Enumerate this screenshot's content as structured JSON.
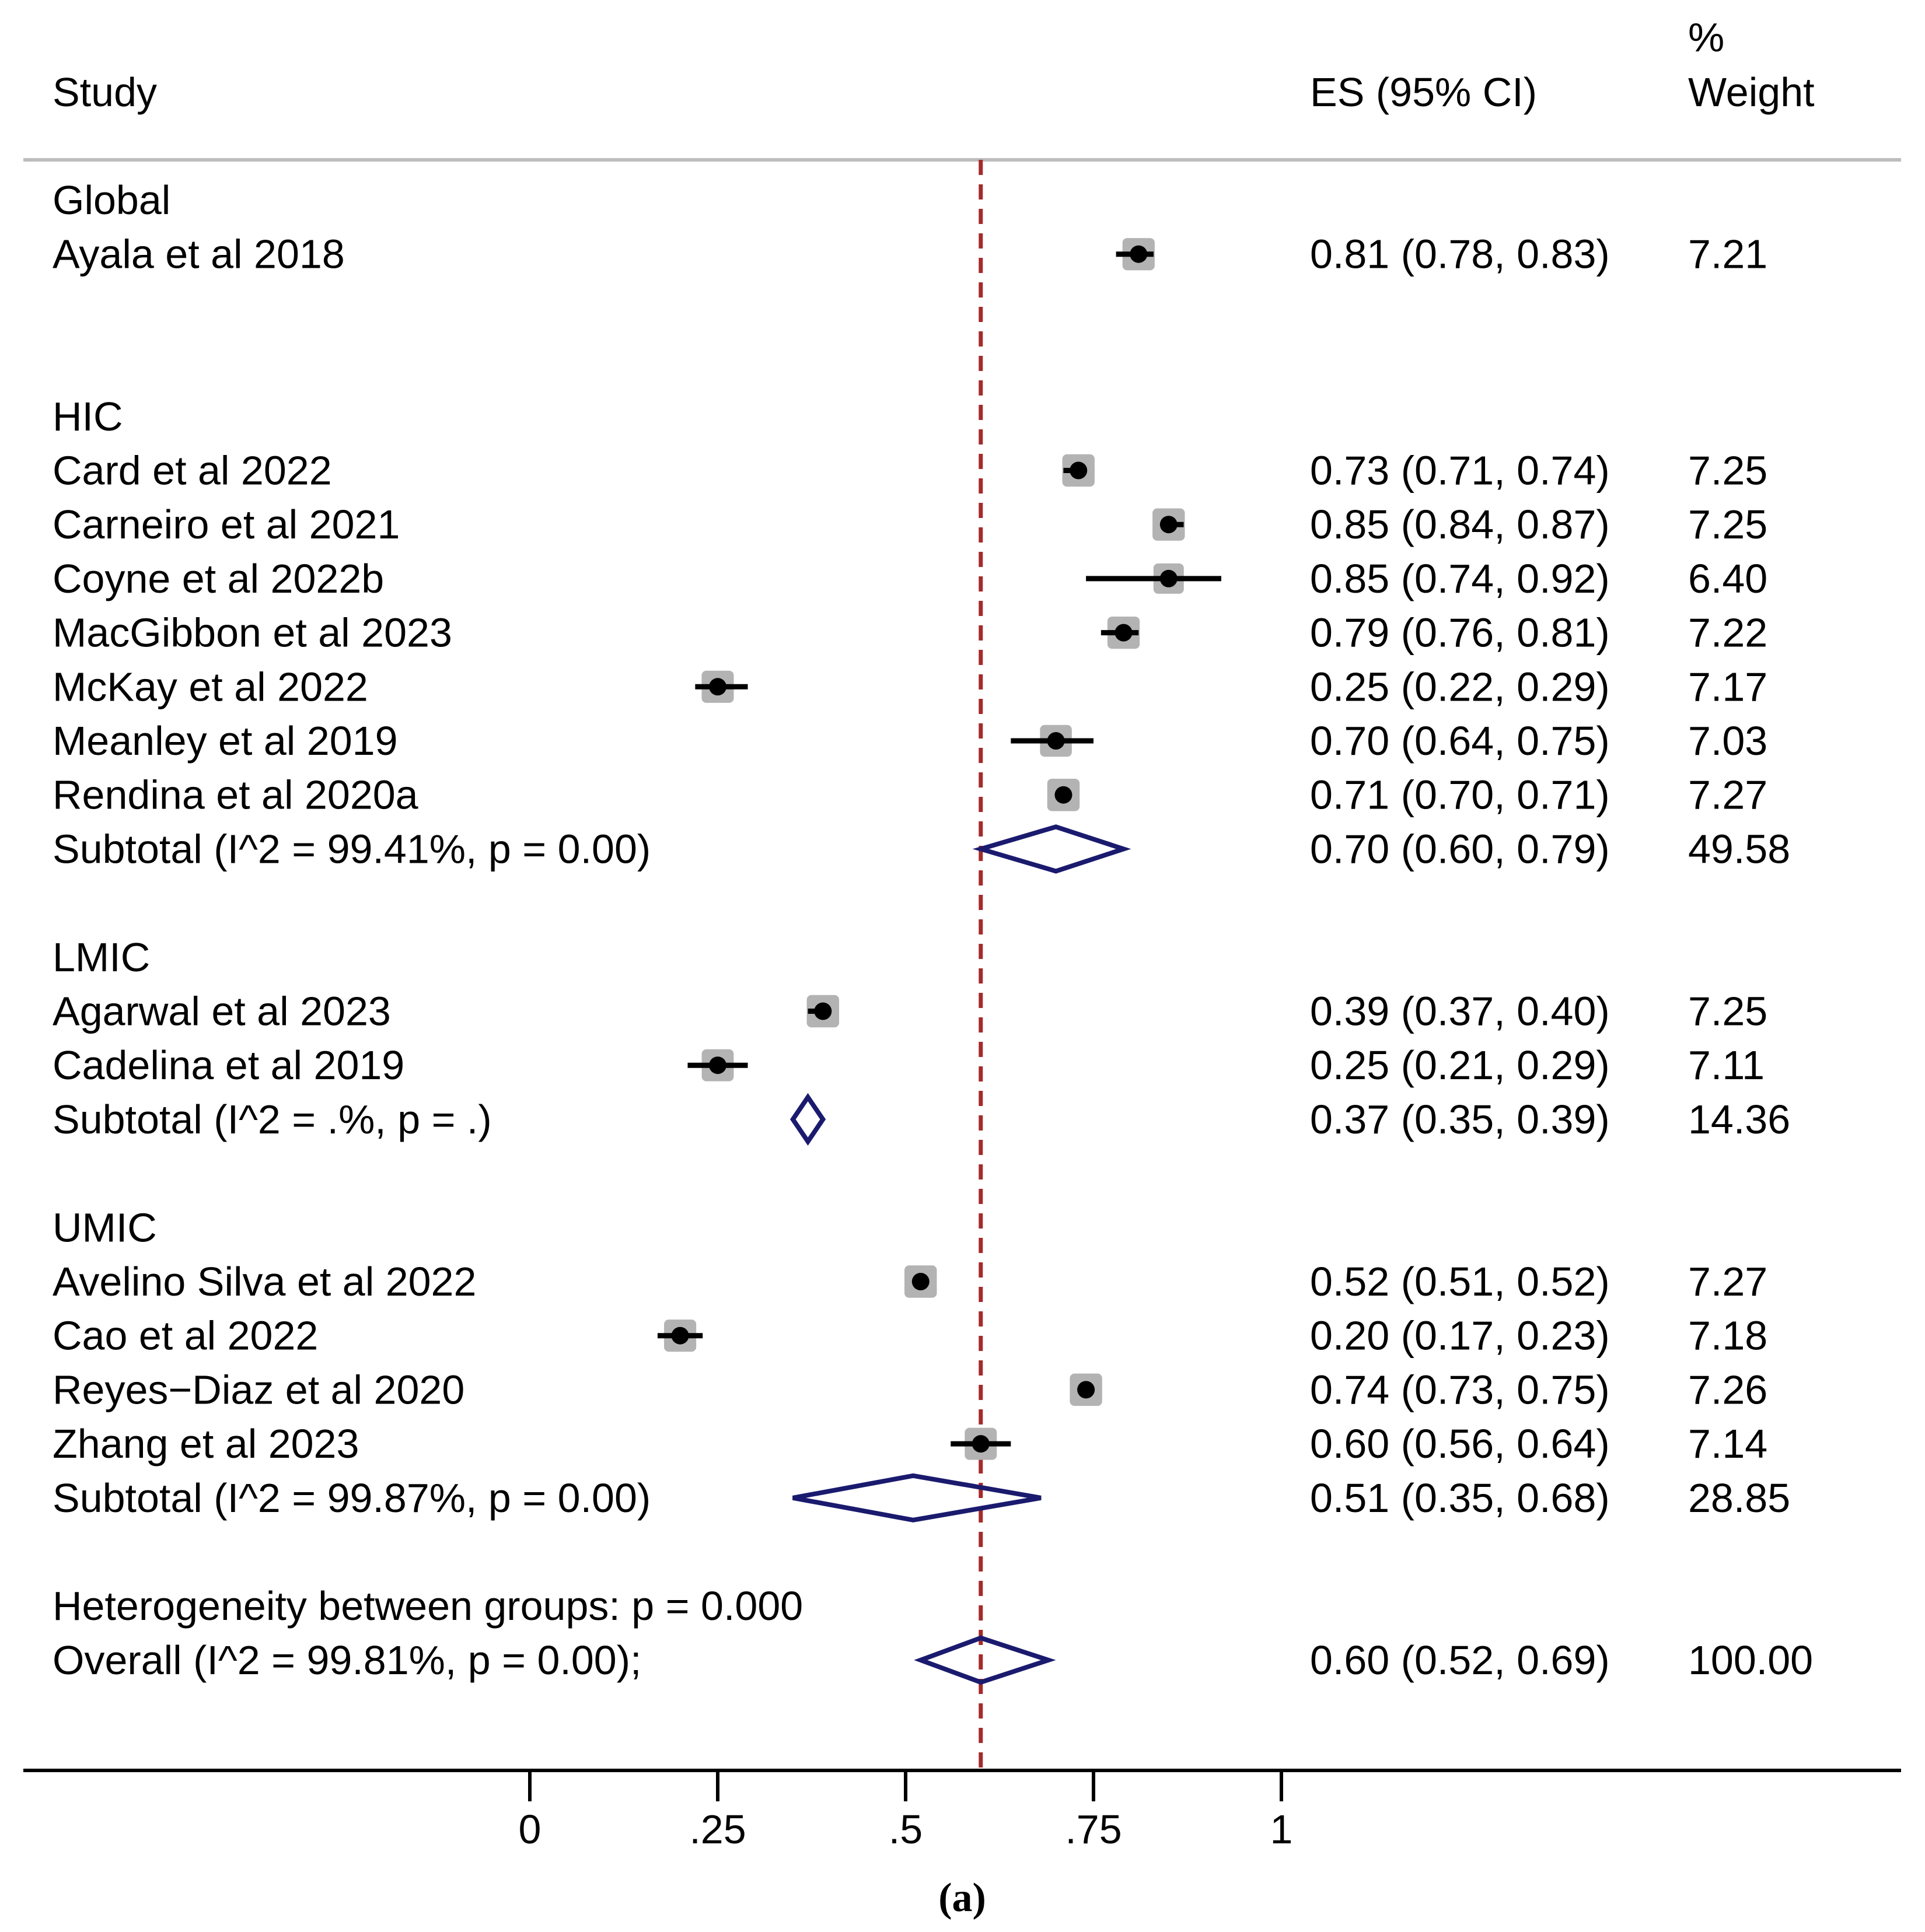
{
  "chart_data": {
    "type": "forest",
    "caption": "(a)",
    "headers": {
      "study": "Study",
      "es": "ES (95% CI)",
      "weight_top": "%",
      "weight_bottom": "Weight"
    },
    "xlim": [
      0,
      1
    ],
    "x_ticks": [
      0,
      0.25,
      0.5,
      0.75,
      1
    ],
    "x_tick_labels": [
      "0",
      ".25",
      ".5",
      ".75",
      "1"
    ],
    "reference_line": 0.6,
    "colors": {
      "text": "#000000",
      "point": "#000000",
      "weight_box": "#b3b3b3",
      "diamond": "#1a1a6e",
      "reference_line": "#a52a2a",
      "rule": "#bdbdbd",
      "axis": "#000000"
    },
    "groups": [
      {
        "name": "Global",
        "studies": [
          {
            "label": "Ayala et al 2018",
            "es": 0.81,
            "lo": 0.78,
            "hi": 0.83,
            "es_text": "0.81 (0.78, 0.83)",
            "weight": "7.21"
          }
        ]
      },
      {
        "name": "HIC",
        "studies": [
          {
            "label": "Card et al 2022",
            "es": 0.73,
            "lo": 0.71,
            "hi": 0.74,
            "es_text": "0.73 (0.71, 0.74)",
            "weight": "7.25"
          },
          {
            "label": "Carneiro et al 2021",
            "es": 0.85,
            "lo": 0.84,
            "hi": 0.87,
            "es_text": "0.85 (0.84, 0.87)",
            "weight": "7.25"
          },
          {
            "label": "Coyne et al 2022b",
            "es": 0.85,
            "lo": 0.74,
            "hi": 0.92,
            "es_text": "0.85 (0.74, 0.92)",
            "weight": "6.40"
          },
          {
            "label": "MacGibbon et al 2023",
            "es": 0.79,
            "lo": 0.76,
            "hi": 0.81,
            "es_text": "0.79 (0.76, 0.81)",
            "weight": "7.22"
          },
          {
            "label": "McKay et al 2022",
            "es": 0.25,
            "lo": 0.22,
            "hi": 0.29,
            "es_text": "0.25 (0.22, 0.29)",
            "weight": "7.17"
          },
          {
            "label": "Meanley et al 2019",
            "es": 0.7,
            "lo": 0.64,
            "hi": 0.75,
            "es_text": "0.70 (0.64, 0.75)",
            "weight": "7.03"
          },
          {
            "label": "Rendina et al 2020a",
            "es": 0.71,
            "lo": 0.7,
            "hi": 0.71,
            "es_text": "0.71 (0.70, 0.71)",
            "weight": "7.27"
          }
        ],
        "subtotal": {
          "label": "Subtotal  (I^2 = 99.41%, p = 0.00)",
          "es": 0.7,
          "lo": 0.6,
          "hi": 0.79,
          "es_text": "0.70 (0.60, 0.79)",
          "weight": "49.58"
        }
      },
      {
        "name": "LMIC",
        "studies": [
          {
            "label": "Agarwal et al 2023",
            "es": 0.39,
            "lo": 0.37,
            "hi": 0.4,
            "es_text": "0.39 (0.37, 0.40)",
            "weight": "7.25"
          },
          {
            "label": "Cadelina et al 2019",
            "es": 0.25,
            "lo": 0.21,
            "hi": 0.29,
            "es_text": "0.25 (0.21, 0.29)",
            "weight": "7.11"
          }
        ],
        "subtotal": {
          "label": "Subtotal  (I^2 = .%, p = .)",
          "es": 0.37,
          "lo": 0.35,
          "hi": 0.39,
          "es_text": "0.37 (0.35, 0.39)",
          "weight": "14.36"
        }
      },
      {
        "name": "UMIC",
        "studies": [
          {
            "label": "Avelino Silva et al 2022",
            "es": 0.52,
            "lo": 0.51,
            "hi": 0.52,
            "es_text": "0.52 (0.51, 0.52)",
            "weight": "7.27"
          },
          {
            "label": "Cao et al 2022",
            "es": 0.2,
            "lo": 0.17,
            "hi": 0.23,
            "es_text": "0.20 (0.17, 0.23)",
            "weight": "7.18"
          },
          {
            "label": "Reyes−Diaz et al 2020",
            "es": 0.74,
            "lo": 0.73,
            "hi": 0.75,
            "es_text": "0.74 (0.73, 0.75)",
            "weight": "7.26"
          },
          {
            "label": "Zhang et al 2023",
            "es": 0.6,
            "lo": 0.56,
            "hi": 0.64,
            "es_text": "0.60 (0.56, 0.64)",
            "weight": "7.14"
          }
        ],
        "subtotal": {
          "label": "Subtotal  (I^2 = 99.87%, p = 0.00)",
          "es": 0.51,
          "lo": 0.35,
          "hi": 0.68,
          "es_text": "0.51 (0.35, 0.68)",
          "weight": "28.85"
        }
      }
    ],
    "heterogeneity": "Heterogeneity between groups: p = 0.000",
    "overall": {
      "label": "Overall  (I^2 = 99.81%, p = 0.00);",
      "es": 0.6,
      "lo": 0.52,
      "hi": 0.69,
      "es_text": "0.60 (0.52, 0.69)",
      "weight": "100.00"
    }
  }
}
